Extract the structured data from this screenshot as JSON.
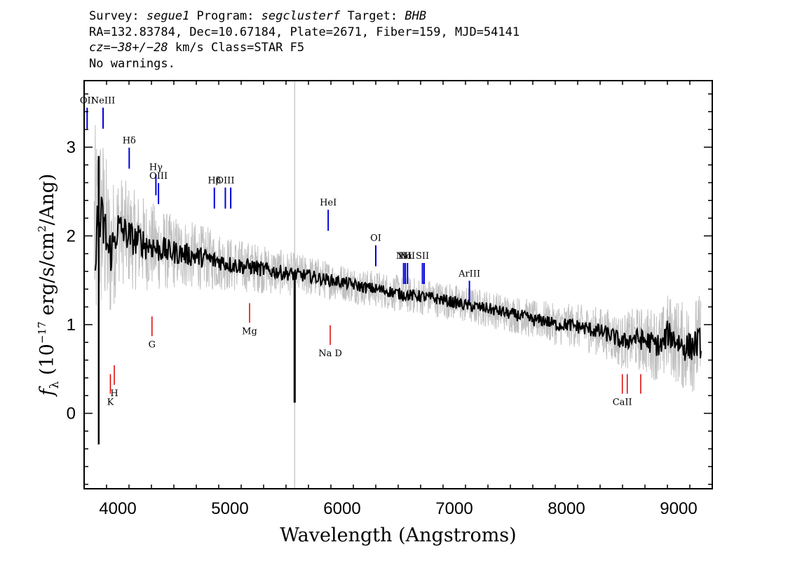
{
  "header": {
    "line1_survey_prefix": "Survey: ",
    "line1_survey": "segue1",
    "line1_program_prefix": " Program: ",
    "line1_program": "segclusterf",
    "line1_target_prefix": " Target: ",
    "line1_target": "BHB",
    "line2": "RA=132.83784, Dec=10.67184, Plate=2671, Fiber=159, MJD=54141",
    "line3_cz": "cz=−38+/−28",
    "line3_rest": " km/s Class=STAR F5",
    "line4": "No warnings."
  },
  "chart_data": {
    "type": "line",
    "xlabel": "Wavelength (Angstroms)",
    "ylabel": "fλ (10⁻¹⁷ erg/s/cm²/Ang)",
    "ylabel_symbol": "f",
    "ylabel_sub": "λ",
    "ylabel_rest_a": " (10",
    "ylabel_exp1": "−17",
    "ylabel_rest_b": " erg/s/cm",
    "ylabel_exp2": "2",
    "ylabel_rest_c": "/Ang)",
    "xlim": [
      3700,
      9300
    ],
    "ylim": [
      -0.85,
      3.75
    ],
    "x_ticks": [
      4000,
      5000,
      6000,
      7000,
      8000,
      9000
    ],
    "x_tick_labels": [
      "4000",
      "5000",
      "6000",
      "7000",
      "8000",
      "9000"
    ],
    "y_ticks": [
      0,
      1,
      2,
      3
    ],
    "y_tick_labels": [
      "0",
      "1",
      "2",
      "3"
    ],
    "sky_line_x": 5577,
    "colors": {
      "flux": "#000000",
      "error": "#c0c0c0",
      "emission": "#0000dd",
      "absorption": "#dd0000",
      "sky": "#c8c8c8"
    },
    "series": [
      {
        "role": "smoothed-flux",
        "x": [
          3800,
          3840,
          3880,
          3920,
          3960,
          4000,
          4050,
          4100,
          4150,
          4200,
          4250,
          4300,
          4350,
          4400,
          4450,
          4500,
          4550,
          4600,
          4650,
          4700,
          4750,
          4800,
          4850,
          4900,
          4950,
          5000,
          5100,
          5200,
          5300,
          5400,
          5500,
          5600,
          5700,
          5800,
          5900,
          6000,
          6100,
          6200,
          6300,
          6400,
          6500,
          6600,
          6700,
          6800,
          6900,
          7000,
          7100,
          7200,
          7300,
          7400,
          7500,
          7600,
          7700,
          7800,
          7900,
          8000,
          8100,
          8200,
          8300,
          8400,
          8500,
          8600,
          8700,
          8800,
          8850,
          8900,
          8950,
          9000,
          9050,
          9100,
          9150,
          9200
        ],
        "y": [
          2.0,
          2.15,
          2.1,
          1.8,
          1.9,
          2.1,
          2.05,
          2.0,
          1.95,
          1.95,
          1.9,
          1.9,
          1.85,
          1.85,
          1.82,
          1.82,
          1.8,
          1.8,
          1.78,
          1.77,
          1.76,
          1.75,
          1.72,
          1.72,
          1.7,
          1.68,
          1.66,
          1.65,
          1.62,
          1.6,
          1.58,
          1.56,
          1.55,
          1.52,
          1.5,
          1.48,
          1.45,
          1.42,
          1.4,
          1.38,
          1.35,
          1.33,
          1.32,
          1.3,
          1.28,
          1.25,
          1.22,
          1.2,
          1.18,
          1.15,
          1.12,
          1.1,
          1.05,
          1.05,
          1.0,
          1.0,
          0.98,
          0.95,
          0.92,
          0.88,
          0.8,
          0.85,
          0.82,
          0.78,
          0.75,
          0.9,
          0.85,
          0.8,
          0.75,
          0.75,
          0.78,
          0.8
        ]
      },
      {
        "role": "flux-error-envelope",
        "x": [
          3800,
          4000,
          4500,
          5000,
          5500,
          6000,
          6500,
          7000,
          7500,
          8000,
          8500,
          9000,
          9200
        ],
        "y_half_width": [
          0.9,
          0.45,
          0.3,
          0.22,
          0.18,
          0.15,
          0.15,
          0.15,
          0.15,
          0.17,
          0.22,
          0.35,
          0.4
        ]
      }
    ],
    "emission_lines": [
      {
        "label": "OII",
        "x": 3727,
        "y": 3.35
      },
      {
        "label": "NeIII",
        "x": 3869,
        "y": 3.35
      },
      {
        "label": "Hδ",
        "x": 4102,
        "y": 2.9
      },
      {
        "label": "Hγ",
        "x": 4340,
        "y": 2.6
      },
      {
        "label": "OIII",
        "x": 4363,
        "y": 2.5
      },
      {
        "label": "Hβ",
        "x": 4861,
        "y": 2.45
      },
      {
        "label": "OIII",
        "x": 4959,
        "y": 2.45
      },
      {
        "label": "",
        "x": 5007,
        "y": 2.45
      },
      {
        "label": "HeI",
        "x": 5876,
        "y": 2.2
      },
      {
        "label": "OI",
        "x": 6300,
        "y": 1.8
      },
      {
        "label": "NII",
        "x": 6548,
        "y": 1.6
      },
      {
        "label": "Hα",
        "x": 6563,
        "y": 1.6
      },
      {
        "label": "NII",
        "x": 6583,
        "y": 1.6
      },
      {
        "label": "SII",
        "x": 6716,
        "y": 1.6
      },
      {
        "label": "",
        "x": 6731,
        "y": 1.6
      },
      {
        "label": "ArIII",
        "x": 7135,
        "y": 1.4
      }
    ],
    "absorption_lines": [
      {
        "label": "K",
        "x": 3934,
        "y": 0.3
      },
      {
        "label": "H",
        "x": 3969,
        "y": 0.4
      },
      {
        "label": "G",
        "x": 4305,
        "y": 0.95
      },
      {
        "label": "Mg",
        "x": 5175,
        "y": 1.1
      },
      {
        "label": "Na D",
        "x": 5894,
        "y": 0.85
      },
      {
        "label": "CaII",
        "x": 8498,
        "y": 0.3
      },
      {
        "label": "",
        "x": 8542,
        "y": 0.3
      },
      {
        "label": "",
        "x": 8662,
        "y": 0.3
      }
    ]
  }
}
